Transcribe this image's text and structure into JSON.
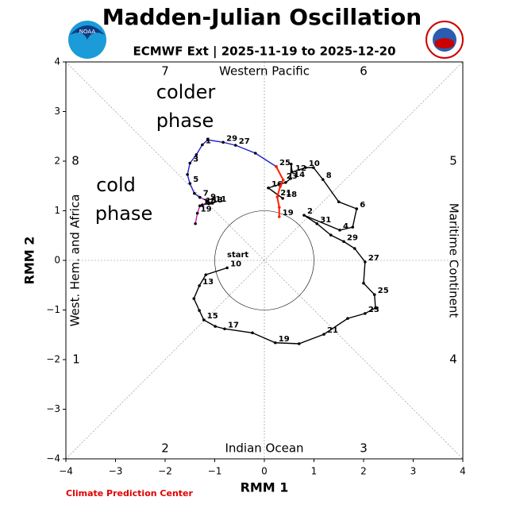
{
  "chart_data": {
    "type": "phase",
    "title": "Madden-Julian Oscillation",
    "subtitle": "ECMWF Ext | 2025-11-19 to 2025-12-20",
    "xlabel": "RMM 1",
    "ylabel": "RMM 2",
    "credit": "Climate Prediction Center",
    "xlim": [
      -4,
      4
    ],
    "ylim": [
      -4,
      4
    ],
    "xticks": [
      {
        "value": -4,
        "label": "−4"
      },
      {
        "value": -3,
        "label": "−3"
      },
      {
        "value": -2,
        "label": "−2"
      },
      {
        "value": -1,
        "label": "−1"
      },
      0,
      1,
      2,
      3,
      4
    ],
    "yticks": [
      {
        "value": -4,
        "label": "−4"
      },
      {
        "value": -3,
        "label": "−3"
      },
      {
        "value": -2,
        "label": "−2"
      },
      {
        "value": -1,
        "label": "−1"
      },
      0,
      1,
      2,
      3,
      4
    ],
    "phases": [
      "1",
      "2",
      "3",
      "4",
      "5",
      "6",
      "7",
      "8"
    ],
    "regions": [
      "Western Pacific",
      "Indian Ocean",
      "West. Hem. and Africa",
      "Maritime Continent"
    ],
    "annotations": [
      "colder",
      "phase",
      "cold",
      "phase",
      "start"
    ],
    "series": [
      {
        "color": "#000000",
        "x": [
          -0.75,
          -1.18,
          -1.31,
          -1.42,
          -1.31,
          -1.22,
          -0.99,
          -0.8,
          -0.24,
          0.22,
          0.7,
          1.2,
          1.68,
          2.03,
          2.24,
          2.22,
          2.0,
          2.03,
          1.82,
          1.6,
          1.34,
          1.06,
          0.8,
          1.52,
          1.78,
          1.86,
          1.5,
          1.18,
          0.99,
          0.83,
          0.56,
          0.54,
          0.53,
          0.43,
          0.08,
          0.37
        ],
        "y": [
          -0.15,
          -0.29,
          -0.51,
          -0.77,
          -1.01,
          -1.2,
          -1.33,
          -1.38,
          -1.46,
          -1.66,
          -1.68,
          -1.49,
          -1.17,
          -1.07,
          -0.96,
          -0.69,
          -0.46,
          -0.03,
          0.24,
          0.38,
          0.51,
          0.74,
          0.91,
          0.61,
          0.67,
          1.04,
          1.18,
          1.63,
          1.87,
          1.87,
          1.78,
          1.94,
          1.65,
          1.57,
          1.46,
          1.25
        ],
        "labels": [
          "10",
          null,
          "13",
          null,
          null,
          "15",
          null,
          "17",
          null,
          "19",
          null,
          "21",
          null,
          "23",
          null,
          "25",
          null,
          "27",
          null,
          "29",
          null,
          "31",
          "2",
          "4",
          null,
          "6",
          null,
          "8",
          null,
          "10",
          "12",
          null,
          "14",
          null,
          "16",
          "18"
        ]
      },
      {
        "color": "#1f1fd0",
        "x": [
          0.24,
          -0.18,
          -0.58,
          -0.83,
          -1.14,
          -1.25,
          -1.37,
          -1.5,
          -1.55,
          -1.5,
          -1.41,
          -1.3
        ],
        "y": [
          1.89,
          2.16,
          2.32,
          2.38,
          2.43,
          2.33,
          2.13,
          1.96,
          1.73,
          1.55,
          1.35,
          1.27
        ],
        "labels": [
          "25",
          null,
          "27",
          "29",
          null,
          "1",
          null,
          "3",
          null,
          "5",
          null,
          null
        ]
      },
      {
        "color": "#d010c0",
        "x": [
          -1.3,
          -1.15,
          -1.05,
          -1.12,
          -1.25,
          -1.3,
          -1.35,
          -1.39
        ],
        "y": [
          1.27,
          1.2,
          1.15,
          1.14,
          1.12,
          1.1,
          0.95,
          0.74
        ],
        "labels": [
          "7",
          "9",
          "11",
          "13",
          "15",
          "17",
          "19",
          null
        ]
      },
      {
        "color": "#ff2000",
        "x": [
          0.24,
          0.38,
          0.32,
          0.26,
          0.3,
          0.3
        ],
        "y": [
          1.89,
          1.62,
          1.49,
          1.28,
          1.07,
          0.88
        ],
        "labels": [
          null,
          "23",
          null,
          "21",
          null,
          "19"
        ]
      }
    ]
  }
}
